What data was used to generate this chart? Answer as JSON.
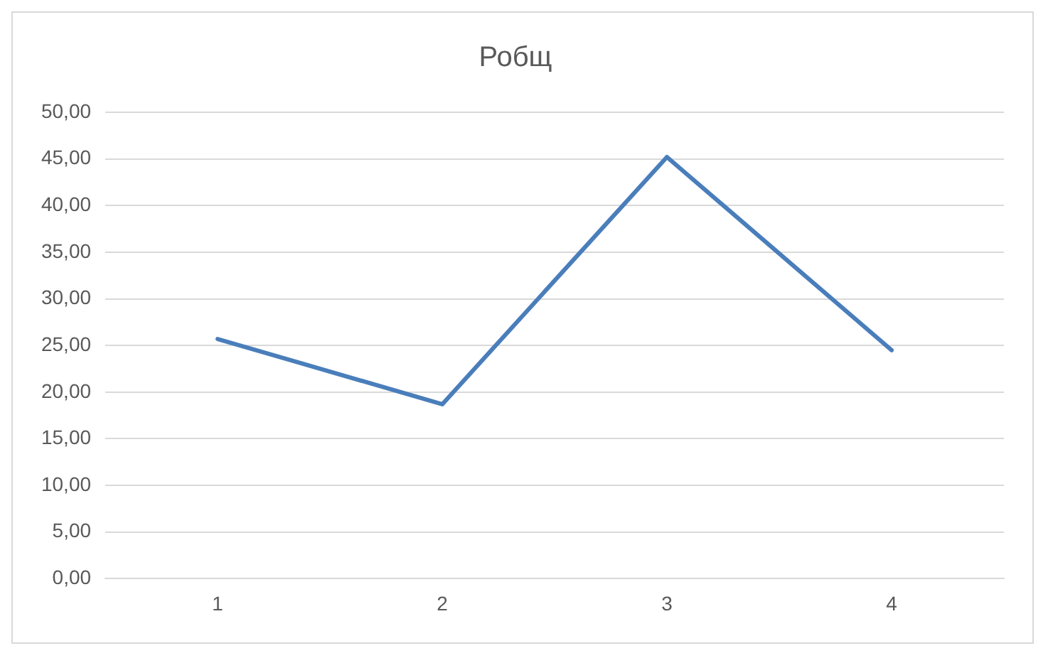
{
  "chart_data": {
    "type": "line",
    "title": "Робщ",
    "categories": [
      "1",
      "2",
      "3",
      "4"
    ],
    "series": [
      {
        "color": "#4a7ebb",
        "values": [
          25.7,
          18.7,
          45.2,
          24.5
        ]
      }
    ],
    "ylim": [
      0,
      50
    ],
    "yticks": [
      {
        "value": 0,
        "label": "0,00"
      },
      {
        "value": 5,
        "label": "5,00"
      },
      {
        "value": 10,
        "label": "10,00"
      },
      {
        "value": 15,
        "label": "15,00"
      },
      {
        "value": 20,
        "label": "20,00"
      },
      {
        "value": 25,
        "label": "25,00"
      },
      {
        "value": 30,
        "label": "30,00"
      },
      {
        "value": 35,
        "label": "35,00"
      },
      {
        "value": 40,
        "label": "40,00"
      },
      {
        "value": 45,
        "label": "45,00"
      },
      {
        "value": 50,
        "label": "50,00"
      }
    ],
    "grid": "y",
    "legend": false,
    "marker": "none",
    "line_style": "solid"
  }
}
